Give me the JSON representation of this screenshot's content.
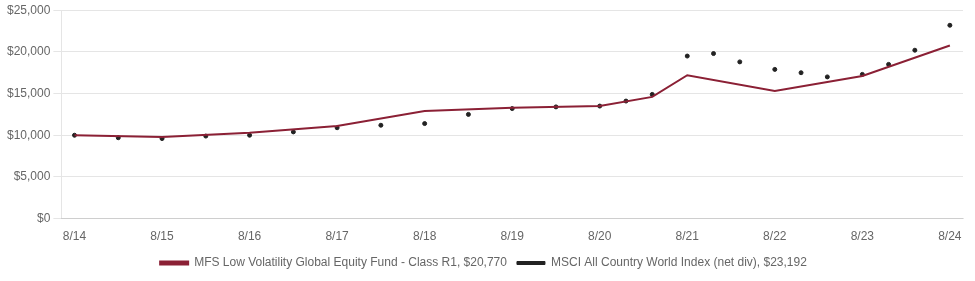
{
  "chart_data": {
    "type": "line",
    "xlim": [
      -0.15,
      10.15
    ],
    "xticks": [
      {
        "value": 0,
        "label": "8/14"
      },
      {
        "value": 1,
        "label": "8/15"
      },
      {
        "value": 2,
        "label": "8/16"
      },
      {
        "value": 3,
        "label": "8/17"
      },
      {
        "value": 4,
        "label": "8/18"
      },
      {
        "value": 5,
        "label": "8/19"
      },
      {
        "value": 6,
        "label": "8/20"
      },
      {
        "value": 7,
        "label": "8/21"
      },
      {
        "value": 8,
        "label": "8/22"
      },
      {
        "value": 9,
        "label": "8/23"
      },
      {
        "value": 10,
        "label": "8/24"
      }
    ],
    "ylim": [
      0,
      25000
    ],
    "yticks": [
      {
        "value": 0,
        "label": "$0"
      },
      {
        "value": 5000,
        "label": "$5,000"
      },
      {
        "value": 10000,
        "label": "$10,000"
      },
      {
        "value": 15000,
        "label": "$15,000"
      },
      {
        "value": 20000,
        "label": "$20,000"
      },
      {
        "value": 25000,
        "label": "$25,000"
      }
    ],
    "grid": "y",
    "legend": "bottom",
    "series": [
      {
        "name": "MFS Low Volatility Global Equity Fund - Class R1, $20,770",
        "color": "#8B2035",
        "line_style": "solid",
        "marker": "none",
        "x": [
          0,
          1,
          2,
          3,
          4,
          5,
          6,
          6.6,
          7,
          8,
          9,
          10
        ],
        "values": [
          10000,
          9800,
          10300,
          11100,
          12900,
          13300,
          13500,
          14600,
          17200,
          15300,
          17100,
          20770
        ]
      },
      {
        "name": "MSCI All Country World Index (net div), $23,192",
        "color": "#222222",
        "line_style": "none",
        "marker": "dot",
        "x": [
          0,
          0.5,
          1,
          1.5,
          2,
          2.5,
          3,
          3.5,
          4,
          4.5,
          5,
          5.5,
          6,
          6.3,
          6.6,
          7,
          7.3,
          7.6,
          8,
          8.3,
          8.6,
          9,
          9.3,
          9.6,
          10
        ],
        "values": [
          10000,
          9700,
          9600,
          9900,
          10000,
          10400,
          10900,
          11200,
          11400,
          12500,
          13200,
          13400,
          13500,
          14100,
          14900,
          19500,
          19800,
          18800,
          17900,
          17500,
          17000,
          17300,
          18500,
          20200,
          23192
        ]
      }
    ]
  }
}
